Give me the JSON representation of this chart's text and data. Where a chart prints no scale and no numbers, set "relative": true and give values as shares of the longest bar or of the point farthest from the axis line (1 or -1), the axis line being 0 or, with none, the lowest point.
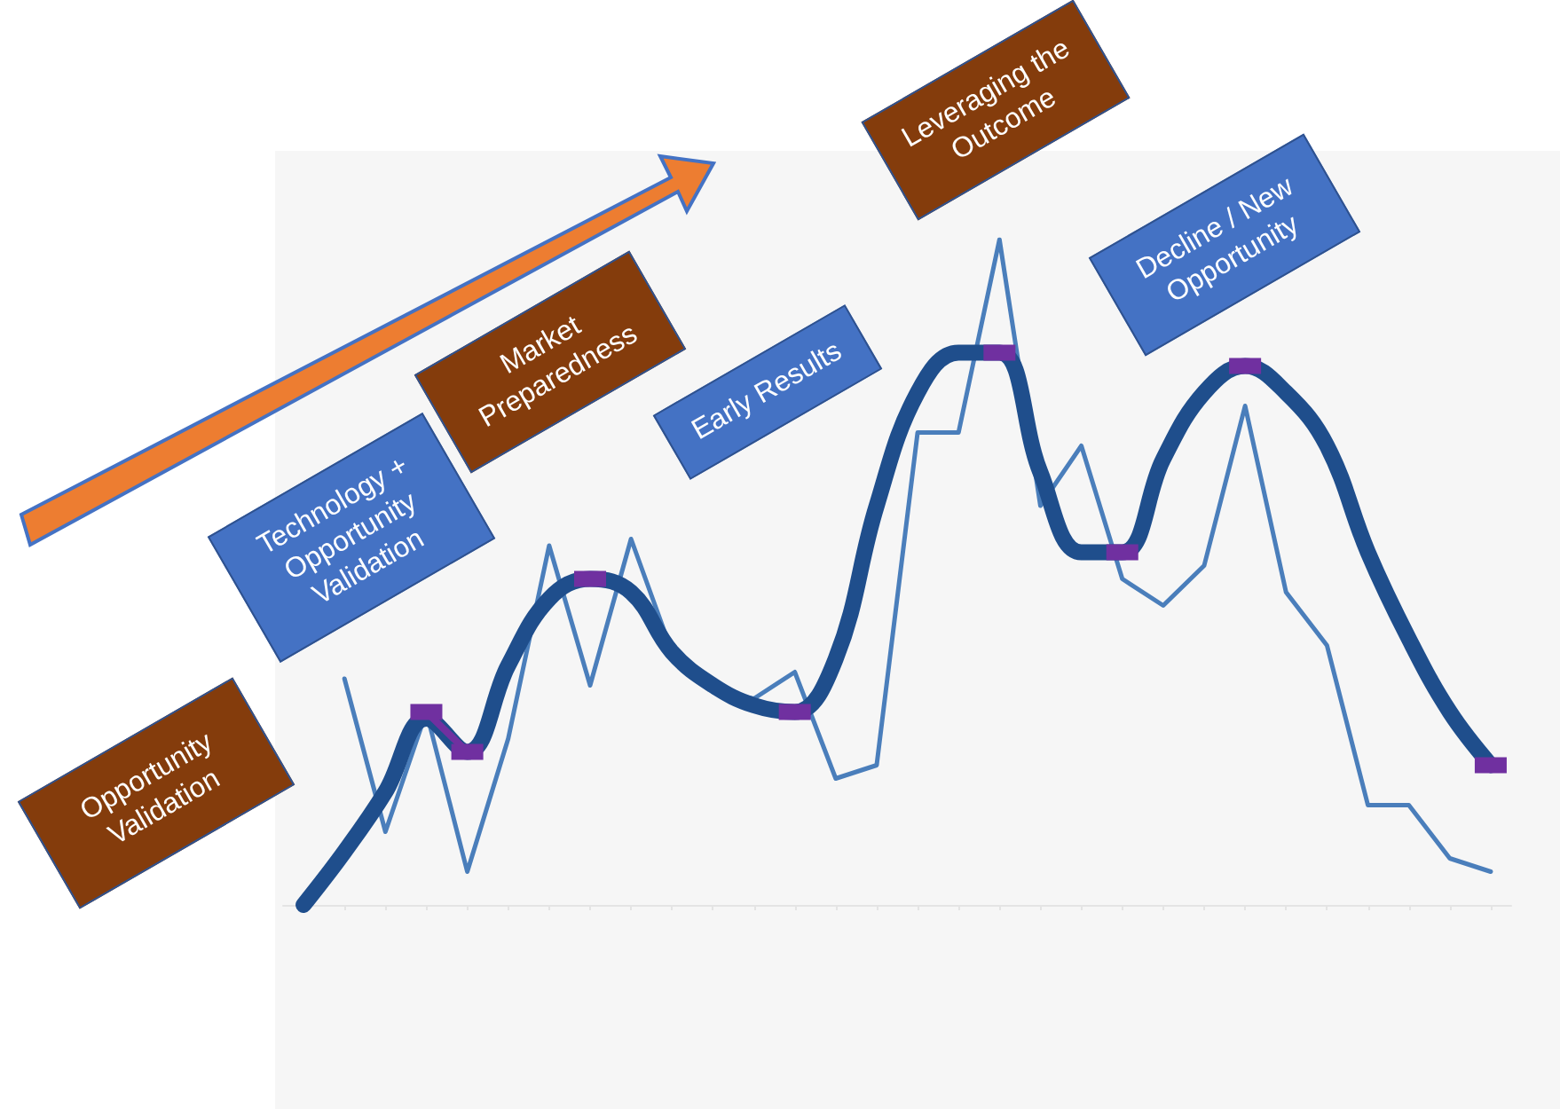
{
  "chart_data": {
    "type": "line",
    "relative": true,
    "marker": "none",
    "categories": [
      null,
      null,
      null,
      null,
      null,
      null,
      null,
      null,
      null,
      null,
      null,
      null,
      null,
      null,
      null,
      null,
      null,
      null,
      null,
      null,
      null,
      null,
      null,
      null,
      null,
      null,
      null,
      null,
      null,
      null
    ],
    "series": [
      {
        "color": "#4a7ebb",
        "values": [
          null,
          0.34,
          0.11,
          0.29,
          0.05,
          0.25,
          0.54,
          0.33,
          0.55,
          0.38,
          0.32,
          0.31,
          0.35,
          0.19,
          0.21,
          0.71,
          0.71,
          1,
          0.6,
          0.69,
          0.49,
          0.45,
          0.51,
          0.75,
          0.47,
          0.39,
          0.15,
          0.15,
          0.07,
          0.05
        ]
      },
      {
        "color": "#1f4e8c",
        "values": [
          0,
          0.08,
          0.17,
          0.28,
          0.23,
          0.36,
          0.46,
          0.49,
          0.47,
          0.38,
          0.33,
          0.3,
          0.29,
          0.37,
          0.6,
          0.77,
          0.83,
          0.83,
          0.65,
          0.53,
          0.53,
          0.67,
          0.77,
          0.81,
          0.77,
          0.69,
          0.53,
          0.4,
          0.29,
          0.21
        ]
      },
      {
        "marker": "square",
        "color": "#7030a0",
        "values": [
          null,
          null,
          null,
          0.29,
          0.23,
          null,
          null,
          0.49,
          null,
          null,
          null,
          null,
          0.29,
          null,
          null,
          null,
          null,
          0.83,
          null,
          null,
          0.53,
          null,
          null,
          0.81,
          null,
          null,
          null,
          null,
          null,
          0.21
        ]
      }
    ],
    "annotations": [
      "Opportunity Validation",
      "Technology + Opportunity Validation",
      "Market Preparedness",
      "Early Results",
      "Leveraging the Outcome",
      "Decline / New Opportunity"
    ]
  }
}
